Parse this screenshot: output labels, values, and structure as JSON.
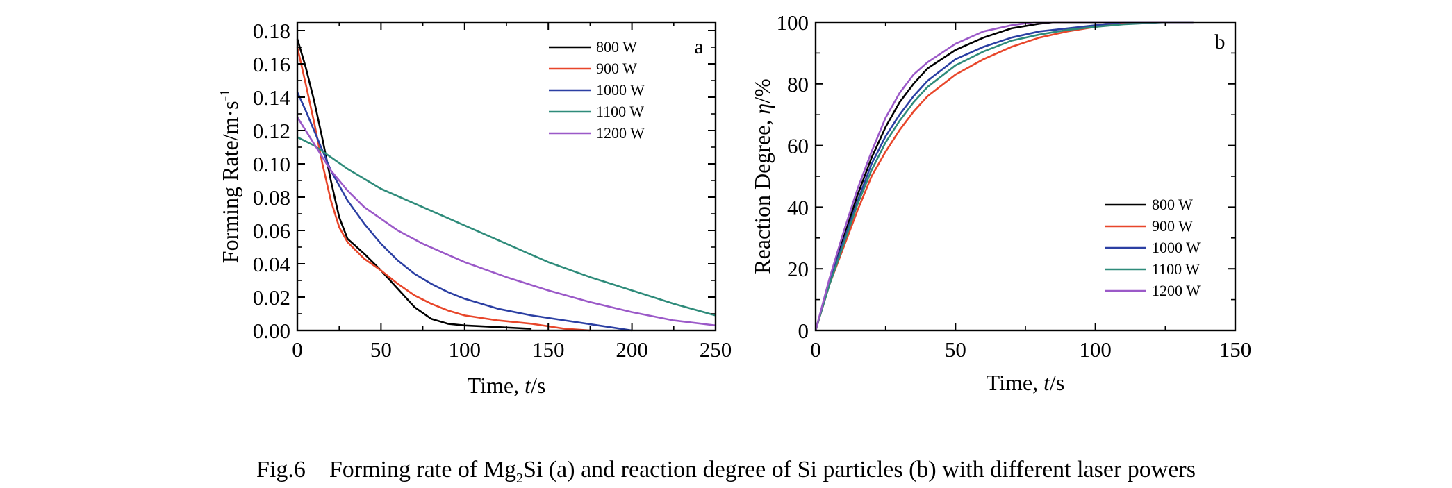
{
  "caption": {
    "fig_number": "Fig.6",
    "text_before": "Forming rate of Mg",
    "subscript": "2",
    "text_after": "Si (a) and reaction degree of Si particles (b) with different laser powers"
  },
  "chart_data": [
    {
      "panel": "a",
      "type": "line",
      "xlabel": {
        "prefix": "Time, ",
        "italic": "t",
        "suffix": "/s"
      },
      "ylabel": {
        "main": "Forming Rate/m·s",
        "superscript": "-1"
      },
      "xlim": [
        0,
        250
      ],
      "ylim": [
        0,
        0.185
      ],
      "xticks": [
        0,
        50,
        100,
        150,
        200,
        250
      ],
      "xtick_labels": [
        "0",
        "50",
        "100",
        "150",
        "200",
        "250"
      ],
      "yticks": [
        0,
        0.02,
        0.04,
        0.06,
        0.08,
        0.1,
        0.12,
        0.14,
        0.16,
        0.18
      ],
      "ytick_labels": [
        "0.00",
        "0.02",
        "0.04",
        "0.06",
        "0.08",
        "0.10",
        "0.12",
        "0.14",
        "0.16",
        "0.18"
      ],
      "grid": false,
      "legend_position": "top-right",
      "series": [
        {
          "name": "800 W",
          "color": "#000000",
          "points": [
            [
              0,
              0.175
            ],
            [
              5,
              0.158
            ],
            [
              10,
              0.138
            ],
            [
              15,
              0.115
            ],
            [
              20,
              0.09
            ],
            [
              25,
              0.068
            ],
            [
              30,
              0.055
            ],
            [
              40,
              0.046
            ],
            [
              50,
              0.036
            ],
            [
              60,
              0.025
            ],
            [
              70,
              0.014
            ],
            [
              80,
              0.007
            ],
            [
              90,
              0.004
            ],
            [
              100,
              0.003
            ],
            [
              120,
              0.002
            ],
            [
              140,
              0.001
            ]
          ]
        },
        {
          "name": "900 W",
          "color": "#e8462a",
          "points": [
            [
              0,
              0.17
            ],
            [
              5,
              0.148
            ],
            [
              10,
              0.125
            ],
            [
              15,
              0.1
            ],
            [
              20,
              0.078
            ],
            [
              25,
              0.062
            ],
            [
              30,
              0.053
            ],
            [
              40,
              0.043
            ],
            [
              50,
              0.036
            ],
            [
              60,
              0.028
            ],
            [
              70,
              0.021
            ],
            [
              80,
              0.016
            ],
            [
              90,
              0.012
            ],
            [
              100,
              0.009
            ],
            [
              120,
              0.006
            ],
            [
              140,
              0.004
            ],
            [
              160,
              0.001
            ],
            [
              175,
              0.0
            ]
          ]
        },
        {
          "name": "1000 W",
          "color": "#2b3fa3",
          "points": [
            [
              0,
              0.143
            ],
            [
              5,
              0.132
            ],
            [
              10,
              0.12
            ],
            [
              15,
              0.108
            ],
            [
              20,
              0.096
            ],
            [
              30,
              0.078
            ],
            [
              40,
              0.064
            ],
            [
              50,
              0.052
            ],
            [
              60,
              0.042
            ],
            [
              70,
              0.034
            ],
            [
              80,
              0.028
            ],
            [
              90,
              0.023
            ],
            [
              100,
              0.019
            ],
            [
              120,
              0.013
            ],
            [
              140,
              0.009
            ],
            [
              160,
              0.006
            ],
            [
              180,
              0.003
            ],
            [
              200,
              0.0
            ]
          ]
        },
        {
          "name": "1100 W",
          "color": "#2e8b7a",
          "points": [
            [
              0,
              0.116
            ],
            [
              10,
              0.111
            ],
            [
              20,
              0.104
            ],
            [
              30,
              0.097
            ],
            [
              40,
              0.091
            ],
            [
              50,
              0.085
            ],
            [
              75,
              0.074
            ],
            [
              100,
              0.063
            ],
            [
              125,
              0.052
            ],
            [
              150,
              0.041
            ],
            [
              175,
              0.032
            ],
            [
              200,
              0.024
            ],
            [
              225,
              0.016
            ],
            [
              250,
              0.009
            ]
          ]
        },
        {
          "name": "1200 W",
          "color": "#9b59c8",
          "points": [
            [
              0,
              0.128
            ],
            [
              5,
              0.12
            ],
            [
              10,
              0.112
            ],
            [
              15,
              0.104
            ],
            [
              20,
              0.096
            ],
            [
              30,
              0.084
            ],
            [
              40,
              0.074
            ],
            [
              50,
              0.067
            ],
            [
              60,
              0.06
            ],
            [
              75,
              0.052
            ],
            [
              100,
              0.041
            ],
            [
              125,
              0.032
            ],
            [
              150,
              0.024
            ],
            [
              175,
              0.017
            ],
            [
              200,
              0.011
            ],
            [
              225,
              0.006
            ],
            [
              250,
              0.003
            ]
          ]
        }
      ]
    },
    {
      "panel": "b",
      "type": "line",
      "xlabel": {
        "prefix": "Time, ",
        "italic": "t",
        "suffix": "/s"
      },
      "ylabel": {
        "main": "Reaction Degree, ",
        "italic": "η",
        "suffix": "/%"
      },
      "xlim": [
        0,
        150
      ],
      "ylim": [
        0,
        100
      ],
      "xticks": [
        0,
        50,
        100,
        150
      ],
      "xtick_labels": [
        "0",
        "50",
        "100",
        "150"
      ],
      "yticks": [
        0,
        20,
        40,
        60,
        80,
        100
      ],
      "ytick_labels": [
        "0",
        "20",
        "40",
        "60",
        "80",
        "100"
      ],
      "grid": false,
      "legend_position": "bottom-right",
      "series": [
        {
          "name": "800 W",
          "color": "#000000",
          "points": [
            [
              0,
              0
            ],
            [
              5,
              16
            ],
            [
              10,
              30
            ],
            [
              15,
              44
            ],
            [
              20,
              56
            ],
            [
              25,
              66
            ],
            [
              30,
              74
            ],
            [
              35,
              80
            ],
            [
              40,
              85
            ],
            [
              50,
              91
            ],
            [
              60,
              95
            ],
            [
              70,
              98
            ],
            [
              80,
              99.5
            ],
            [
              85,
              100
            ],
            [
              135,
              100
            ]
          ]
        },
        {
          "name": "900 W",
          "color": "#e8462a",
          "points": [
            [
              0,
              0
            ],
            [
              5,
              15
            ],
            [
              10,
              27
            ],
            [
              15,
              39
            ],
            [
              20,
              50
            ],
            [
              25,
              58
            ],
            [
              30,
              65
            ],
            [
              35,
              71
            ],
            [
              40,
              76
            ],
            [
              50,
              83
            ],
            [
              60,
              88
            ],
            [
              70,
              92
            ],
            [
              80,
              95
            ],
            [
              90,
              97
            ],
            [
              100,
              98.5
            ],
            [
              110,
              99.5
            ],
            [
              120,
              100
            ],
            [
              135,
              100
            ]
          ]
        },
        {
          "name": "1000 W",
          "color": "#2b3fa3",
          "points": [
            [
              0,
              0
            ],
            [
              5,
              16
            ],
            [
              10,
              29
            ],
            [
              15,
              42
            ],
            [
              20,
              54
            ],
            [
              25,
              63
            ],
            [
              30,
              70
            ],
            [
              35,
              76
            ],
            [
              40,
              81
            ],
            [
              50,
              88
            ],
            [
              60,
              92
            ],
            [
              70,
              95
            ],
            [
              80,
              97
            ],
            [
              90,
              98
            ],
            [
              100,
              99
            ],
            [
              110,
              100
            ],
            [
              135,
              100
            ]
          ]
        },
        {
          "name": "1100 W",
          "color": "#2e8b7a",
          "points": [
            [
              0,
              0
            ],
            [
              5,
              15
            ],
            [
              10,
              28
            ],
            [
              15,
              41
            ],
            [
              20,
              52
            ],
            [
              25,
              61
            ],
            [
              30,
              68
            ],
            [
              35,
              74
            ],
            [
              40,
              79
            ],
            [
              50,
              86
            ],
            [
              60,
              90.5
            ],
            [
              70,
              94
            ],
            [
              80,
              96
            ],
            [
              90,
              97.5
            ],
            [
              100,
              98.5
            ],
            [
              110,
              99.3
            ],
            [
              125,
              100
            ],
            [
              135,
              100
            ]
          ]
        },
        {
          "name": "1200 W",
          "color": "#9b59c8",
          "points": [
            [
              0,
              0
            ],
            [
              5,
              17
            ],
            [
              10,
              32
            ],
            [
              15,
              46
            ],
            [
              20,
              58
            ],
            [
              25,
              69
            ],
            [
              30,
              77
            ],
            [
              35,
              83
            ],
            [
              40,
              87
            ],
            [
              50,
              93
            ],
            [
              60,
              97
            ],
            [
              70,
              99
            ],
            [
              78,
              100
            ],
            [
              135,
              100
            ]
          ]
        }
      ]
    }
  ]
}
